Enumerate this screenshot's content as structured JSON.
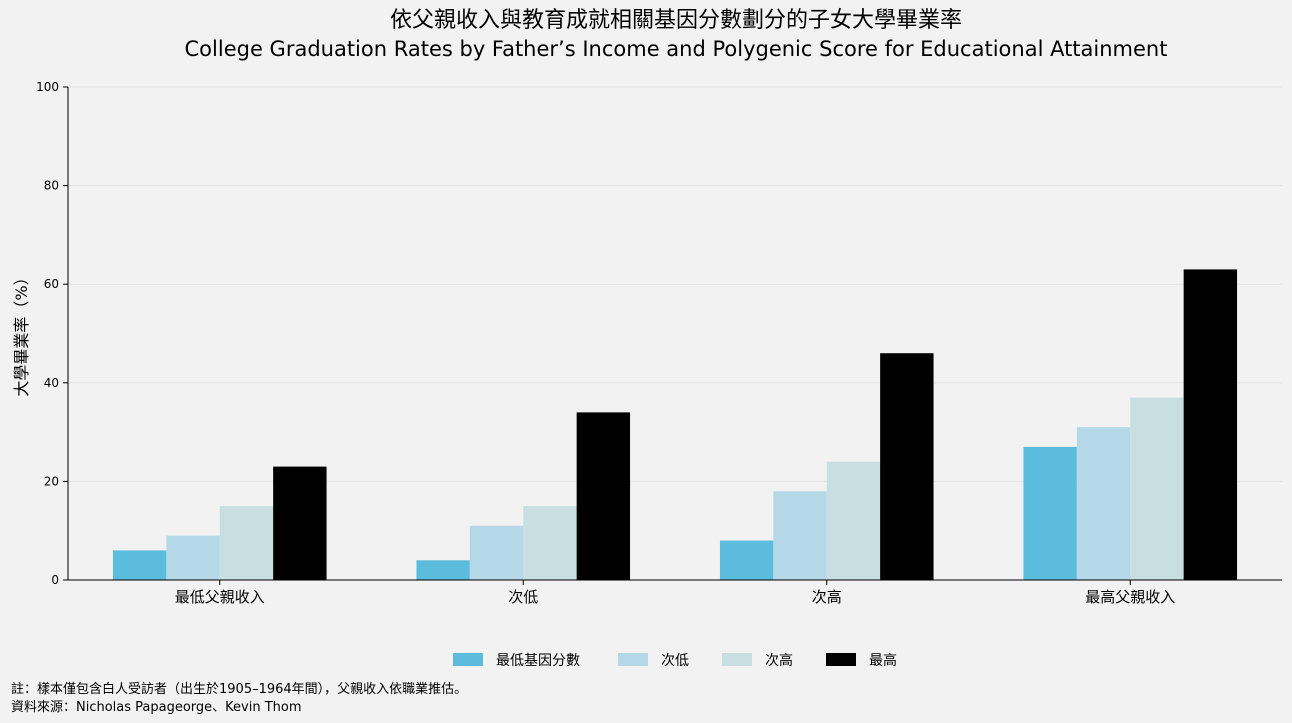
{
  "chart_data": {
    "type": "bar",
    "title": "依父親收入與教育成就相關基因分數劃分的子女大學畢業率",
    "subtitle": "College Graduation Rates by Father’s Income and Polygenic Score for Educational Attainment",
    "xlabel": "",
    "ylabel": "大學畢業率（%）",
    "ylim": [
      0,
      100
    ],
    "yticks": [
      0,
      20,
      40,
      60,
      80,
      100
    ],
    "grid": "horizontal",
    "legend_position": "bottom-center",
    "categories": [
      "最低父親收入",
      "次低",
      "次高",
      "最高父親收入"
    ],
    "series": [
      {
        "name": "最低基因分數",
        "color": "#5bbcdd",
        "values": [
          6,
          4,
          8,
          27
        ]
      },
      {
        "name": "次低",
        "color": "#b5d8e8",
        "values": [
          9,
          11,
          18,
          31
        ]
      },
      {
        "name": "次高",
        "color": "#c8dfe2",
        "values": [
          15,
          15,
          24,
          37
        ]
      },
      {
        "name": "最高",
        "color": "#000000",
        "values": [
          23,
          34,
          46,
          63
        ]
      }
    ]
  },
  "footer": {
    "note": "註：樣本僅包含白人受訪者（出生於1905–1964年間），父親收入依職業推估。",
    "source": "資料來源：Nicholas Papageorge、Kevin Thom"
  }
}
